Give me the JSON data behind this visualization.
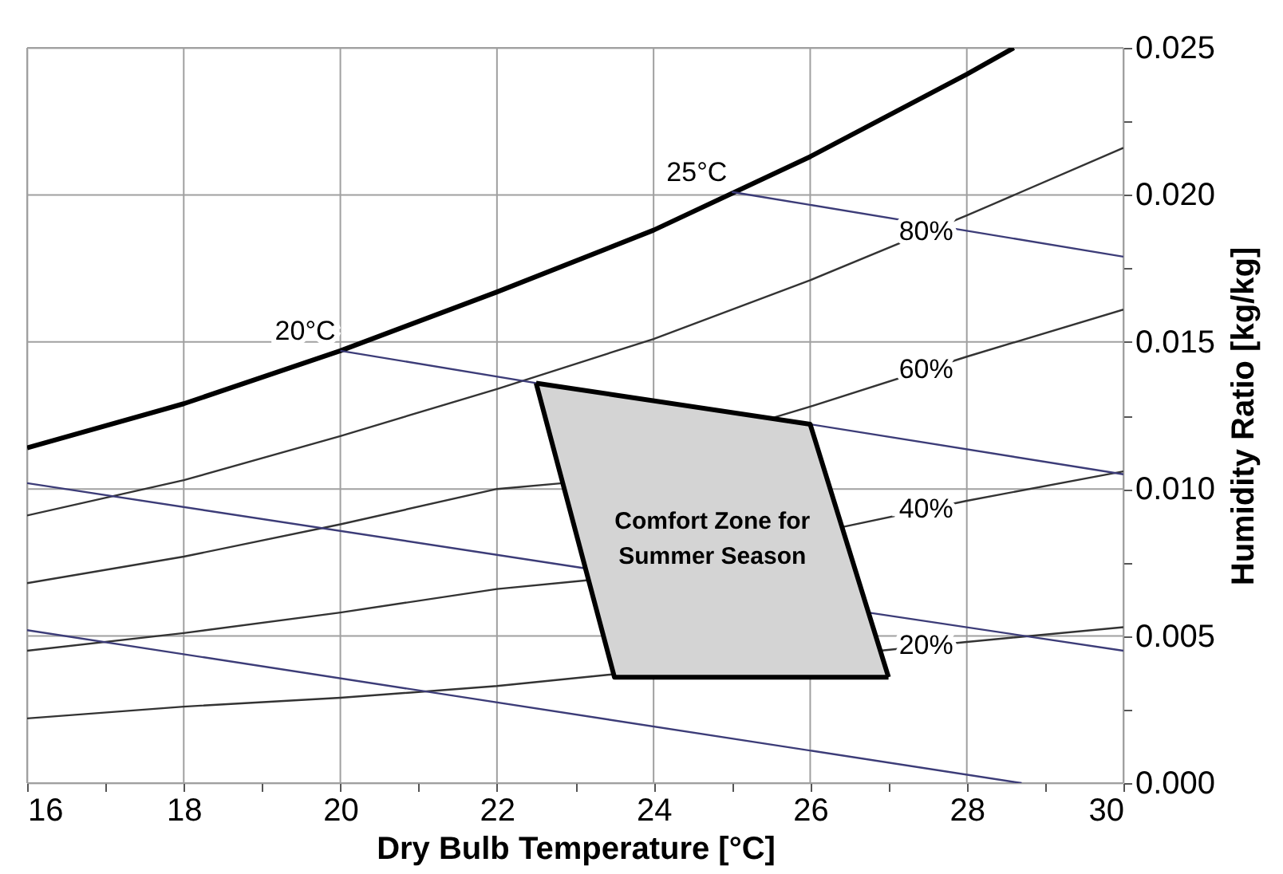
{
  "chart_data": {
    "type": "line",
    "xlabel": "Dry Bulb Temperature [°C]",
    "ylabel": "Humidity Ratio [kg/kg]",
    "xlim": [
      16,
      30
    ],
    "ylim": [
      0,
      0.025
    ],
    "xticks": [
      16,
      {
        "value": 17,
        "label": null
      },
      18,
      {
        "value": 19,
        "label": null
      },
      20,
      {
        "value": 21,
        "label": null
      },
      22,
      {
        "value": 23,
        "label": null
      },
      24,
      {
        "value": 25,
        "label": null
      },
      26,
      {
        "value": 27,
        "label": null
      },
      28,
      {
        "value": 29,
        "label": null
      },
      30
    ],
    "yticks": [
      {
        "value": 0,
        "label": "0.000"
      },
      {
        "value": 0.0025,
        "label": null
      },
      {
        "value": 0.005,
        "label": "0.005"
      },
      {
        "value": 0.0075,
        "label": null
      },
      {
        "value": 0.01,
        "label": "0.010"
      },
      {
        "value": 0.0125,
        "label": null
      },
      {
        "value": 0.015,
        "label": "0.015"
      },
      {
        "value": 0.0175,
        "label": null
      },
      {
        "value": 0.02,
        "label": "0.020"
      },
      {
        "value": 0.0225,
        "label": null
      },
      {
        "value": 0.025,
        "label": "0.025"
      }
    ],
    "grid": true,
    "marker": "none",
    "line_style": "solid",
    "series": [
      {
        "type": "line",
        "color": "#000000",
        "x": [
          16,
          18,
          20,
          22,
          24,
          26,
          28,
          28.6
        ],
        "values": [
          0.0114,
          0.0129,
          0.0147,
          0.0167,
          0.0188,
          0.0213,
          0.0241,
          0.025
        ]
      },
      {
        "type": "line",
        "name": "80%",
        "color": "#333333",
        "x": [
          16,
          18,
          20,
          22,
          24,
          26,
          28,
          30
        ],
        "values": [
          0.0091,
          0.0103,
          0.0118,
          0.0134,
          0.0151,
          0.0171,
          0.0193,
          0.0216
        ]
      },
      {
        "type": "line",
        "name": "60%",
        "color": "#333333",
        "x": [
          16,
          18,
          20,
          22,
          22.84,
          24,
          25.5,
          26,
          28,
          30
        ],
        "values": [
          0.0068,
          0.0077,
          0.0088,
          0.01,
          0.0102,
          null,
          0.0124,
          0.0128,
          0.0145,
          0.0161
        ]
      },
      {
        "type": "line",
        "name": "40%",
        "color": "#333333",
        "x": [
          16,
          18,
          20,
          22,
          23.17,
          24,
          26.4,
          28,
          30
        ],
        "values": [
          0.0045,
          0.0051,
          0.0058,
          0.0066,
          0.0069,
          null,
          0.0087,
          0.0096,
          0.0106
        ]
      },
      {
        "type": "line",
        "name": "20%",
        "color": "#333333",
        "x": [
          16,
          18,
          20,
          22,
          23.49,
          24,
          26,
          26.89,
          28,
          30
        ],
        "values": [
          0.0022,
          0.0026,
          0.0029,
          0.0033,
          0.0037,
          null,
          null,
          0.0045,
          0.0048,
          0.0053
        ]
      },
      {
        "type": "line",
        "name": "20°C",
        "color": "#3c3c78",
        "x": [
          20,
          22.5,
          24,
          26,
          30
        ],
        "values": [
          0.0147,
          0.0136,
          null,
          0.0122,
          0.0105
        ]
      },
      {
        "type": "line",
        "name": "25°C",
        "color": "#3c3c78",
        "x": [
          25,
          30
        ],
        "values": [
          0.0201,
          0.0179
        ]
      },
      {
        "type": "line",
        "color": "#3c3c78",
        "x": [
          16,
          23.13,
          25,
          26.74,
          30
        ],
        "values": [
          0.0102,
          0.0073,
          null,
          0.0058,
          0.0045
        ]
      },
      {
        "type": "line",
        "color": "#3c3c78",
        "x": [
          16,
          28.7
        ],
        "values": [
          0.0052,
          0
        ]
      },
      {
        "type": "line",
        "name": "Comfort Zone for\nSummer Season",
        "color": "#000000",
        "x": [
          22.5,
          23.5,
          26,
          27
        ],
        "values": [
          0.0136,
          0.0132,
          0.0122,
          0.0036
        ],
        "upper": [
          0.0136,
          0.0132,
          0.0122,
          0.0036
        ],
        "lower": [
          0.0136,
          0.0036,
          0.0036,
          0.0036
        ]
      }
    ]
  }
}
